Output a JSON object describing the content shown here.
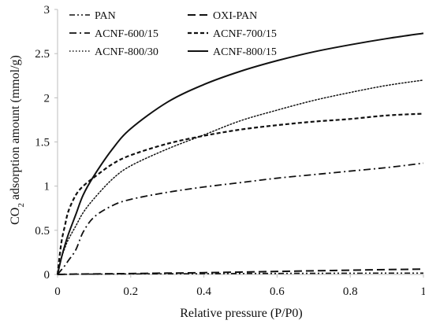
{
  "chart_data": {
    "type": "line",
    "title": "",
    "xlabel": "Relative pressure (P/P0)",
    "ylabel": "CO2 adsorption amount (mmol/g)",
    "ylabel_parts": {
      "pre": "CO",
      "sub": "2",
      "post": " adsorption amount (mmol/g)"
    },
    "xlim": [
      0,
      1
    ],
    "ylim": [
      0,
      3
    ],
    "x_ticks": [
      0,
      0.2,
      0.4,
      0.6,
      0.8,
      1
    ],
    "x_tick_labels": [
      "0",
      "0.2",
      "0.4",
      "0.6",
      "0.8",
      "1"
    ],
    "y_ticks": [
      0,
      0.5,
      1,
      1.5,
      2,
      2.5,
      3
    ],
    "y_tick_labels": [
      "0",
      "0.5",
      "1",
      "1.5",
      "2",
      "2.5",
      "3"
    ],
    "grid": false,
    "legend_position": "top-left",
    "x": [
      0,
      0.01,
      0.02,
      0.03,
      0.05,
      0.07,
      0.1,
      0.15,
      0.2,
      0.3,
      0.4,
      0.5,
      0.6,
      0.7,
      0.8,
      0.9,
      1.0
    ],
    "series": [
      {
        "name": "PAN",
        "style": "dash-dot-dot",
        "color": "#111111",
        "values": [
          0,
          0.001,
          0.002,
          0.002,
          0.003,
          0.004,
          0.004,
          0.005,
          0.006,
          0.008,
          0.009,
          0.011,
          0.012,
          0.013,
          0.014,
          0.015,
          0.015
        ]
      },
      {
        "name": "OXI-PAN",
        "style": "long-dash",
        "color": "#111111",
        "values": [
          0,
          0.001,
          0.002,
          0.003,
          0.004,
          0.005,
          0.006,
          0.008,
          0.01,
          0.015,
          0.02,
          0.027,
          0.034,
          0.041,
          0.048,
          0.055,
          0.06
        ]
      },
      {
        "name": "ACNF-600/15",
        "style": "dash-dot",
        "color": "#111111",
        "values": [
          0,
          0.05,
          0.1,
          0.16,
          0.28,
          0.48,
          0.65,
          0.78,
          0.85,
          0.93,
          0.99,
          1.04,
          1.09,
          1.13,
          1.17,
          1.21,
          1.26
        ]
      },
      {
        "name": "ACNF-700/15",
        "style": "short-dash",
        "color": "#111111",
        "values": [
          0,
          0.35,
          0.55,
          0.72,
          0.9,
          1.0,
          1.1,
          1.25,
          1.35,
          1.48,
          1.57,
          1.64,
          1.69,
          1.73,
          1.76,
          1.8,
          1.82
        ]
      },
      {
        "name": "ACNF-800/30",
        "style": "dotted",
        "color": "#111111",
        "values": [
          0,
          0.18,
          0.3,
          0.4,
          0.55,
          0.7,
          0.86,
          1.08,
          1.23,
          1.42,
          1.58,
          1.74,
          1.86,
          1.97,
          2.06,
          2.14,
          2.2
        ]
      },
      {
        "name": "ACNF-800/15",
        "style": "solid",
        "color": "#111111",
        "values": [
          0,
          0.18,
          0.33,
          0.46,
          0.68,
          0.9,
          1.12,
          1.42,
          1.65,
          1.95,
          2.15,
          2.3,
          2.42,
          2.52,
          2.6,
          2.67,
          2.73
        ]
      }
    ]
  }
}
